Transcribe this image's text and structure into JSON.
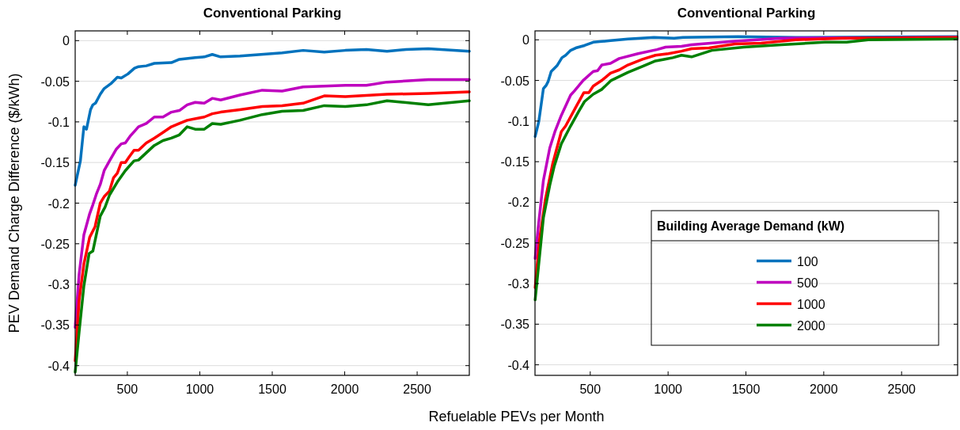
{
  "chart_data": [
    {
      "type": "line",
      "title": "Conventional Parking",
      "xlabel": "Refuelable PEVs per Month",
      "ylabel": "PEV Demand Charge Difference ($/kWh)",
      "xlim": [
        140,
        2860
      ],
      "ylim": [
        -0.412,
        0.012
      ],
      "xticks": [
        500,
        1000,
        1500,
        2000,
        2500
      ],
      "yticks": [
        0,
        -0.05,
        -0.1,
        -0.15,
        -0.2,
        -0.25,
        -0.3,
        -0.35,
        -0.4
      ],
      "grid": "y",
      "legend": false,
      "line_style": "solid",
      "marker": "none",
      "series": [
        {
          "color": "#0072bd",
          "x": [
            140,
            176,
            200,
            218,
            246,
            262,
            280,
            313,
            340,
            386,
            431,
            458,
            504,
            549,
            577,
            631,
            686,
            804,
            859,
            968,
            1031,
            1086,
            1144,
            1277,
            1568,
            1713,
            1859,
            2004,
            2150,
            2292,
            2423,
            2577,
            2860
          ],
          "values": [
            -0.178,
            -0.148,
            -0.106,
            -0.109,
            -0.085,
            -0.079,
            -0.077,
            -0.066,
            -0.059,
            -0.053,
            -0.045,
            -0.046,
            -0.041,
            -0.034,
            -0.032,
            -0.031,
            -0.028,
            -0.027,
            -0.023,
            -0.021,
            -0.02,
            -0.017,
            -0.02,
            -0.019,
            -0.015,
            -0.012,
            -0.014,
            -0.012,
            -0.011,
            -0.013,
            -0.011,
            -0.01,
            -0.013
          ]
        },
        {
          "color": "#bf00bf",
          "x": [
            140,
            167,
            200,
            240,
            262,
            286,
            313,
            340,
            377,
            422,
            458,
            486,
            522,
            577,
            631,
            686,
            746,
            804,
            859,
            913,
            968,
            1031,
            1086,
            1144,
            1277,
            1431,
            1568,
            1713,
            1859,
            2004,
            2150,
            2292,
            2577,
            2860
          ],
          "values": [
            -0.353,
            -0.288,
            -0.239,
            -0.213,
            -0.202,
            -0.189,
            -0.177,
            -0.16,
            -0.148,
            -0.134,
            -0.127,
            -0.126,
            -0.117,
            -0.106,
            -0.102,
            -0.094,
            -0.094,
            -0.088,
            -0.086,
            -0.079,
            -0.076,
            -0.077,
            -0.071,
            -0.073,
            -0.067,
            -0.061,
            -0.062,
            -0.057,
            -0.056,
            -0.055,
            -0.055,
            -0.051,
            -0.048,
            -0.048
          ]
        },
        {
          "color": "#ff0000",
          "x": [
            140,
            167,
            200,
            240,
            277,
            313,
            340,
            377,
            404,
            431,
            458,
            486,
            513,
            546,
            577,
            631,
            686,
            746,
            804,
            859,
            913,
            1031,
            1086,
            1144,
            1277,
            1431,
            1568,
            1713,
            1859,
            2004,
            2292,
            2577,
            2860
          ],
          "values": [
            -0.394,
            -0.32,
            -0.275,
            -0.242,
            -0.229,
            -0.2,
            -0.192,
            -0.185,
            -0.169,
            -0.163,
            -0.15,
            -0.15,
            -0.143,
            -0.135,
            -0.135,
            -0.126,
            -0.12,
            -0.113,
            -0.106,
            -0.102,
            -0.098,
            -0.094,
            -0.09,
            -0.088,
            -0.085,
            -0.081,
            -0.08,
            -0.077,
            -0.068,
            -0.069,
            -0.066,
            -0.065,
            -0.063
          ]
        },
        {
          "color": "#008000",
          "x": [
            140,
            167,
            200,
            236,
            262,
            313,
            346,
            377,
            431,
            486,
            546,
            577,
            631,
            686,
            746,
            804,
            859,
            913,
            968,
            1031,
            1086,
            1144,
            1277,
            1431,
            1568,
            1713,
            1859,
            2004,
            2150,
            2292,
            2577,
            2860
          ],
          "values": [
            -0.408,
            -0.359,
            -0.302,
            -0.262,
            -0.259,
            -0.216,
            -0.205,
            -0.19,
            -0.174,
            -0.16,
            -0.148,
            -0.147,
            -0.138,
            -0.129,
            -0.123,
            -0.12,
            -0.116,
            -0.106,
            -0.109,
            -0.109,
            -0.102,
            -0.103,
            -0.098,
            -0.091,
            -0.087,
            -0.086,
            -0.08,
            -0.081,
            -0.079,
            -0.074,
            -0.079,
            -0.074
          ]
        }
      ]
    },
    {
      "type": "line",
      "title": "Conventional Parking",
      "legend_title": "Building Average Demand (kW)",
      "xlim": [
        145,
        2860
      ],
      "ylim": [
        -0.413,
        0.011
      ],
      "xticks": [
        500,
        1000,
        1500,
        2000,
        2500
      ],
      "yticks": [
        0,
        -0.05,
        -0.1,
        -0.15,
        -0.2,
        -0.25,
        -0.3,
        -0.35,
        -0.4
      ],
      "grid": "y",
      "legend": "bottom right",
      "line_style": "solid",
      "marker": "none",
      "series": [
        {
          "name": "100",
          "color": "#0072bd",
          "x": [
            146,
            169,
            199,
            217,
            230,
            249,
            286,
            318,
            342,
            374,
            407,
            463,
            519,
            574,
            630,
            742,
            909,
            1039,
            1095,
            1449,
            1821,
            2857
          ],
          "values": [
            -0.119,
            -0.101,
            -0.06,
            -0.056,
            -0.051,
            -0.039,
            -0.032,
            -0.022,
            -0.019,
            -0.013,
            -0.01,
            -0.007,
            -0.003,
            -0.002,
            -0.001,
            0.001,
            0.003,
            0.002,
            0.003,
            0.004,
            0.003,
            0.004
          ]
        },
        {
          "name": "500",
          "color": "#bf00bf",
          "x": [
            146,
            165,
            199,
            240,
            273,
            314,
            374,
            398,
            454,
            519,
            547,
            574,
            630,
            686,
            807,
            928,
            984,
            1086,
            1151,
            1412,
            1728,
            2857
          ],
          "values": [
            -0.269,
            -0.232,
            -0.173,
            -0.133,
            -0.113,
            -0.093,
            -0.068,
            -0.063,
            -0.05,
            -0.039,
            -0.038,
            -0.031,
            -0.029,
            -0.023,
            -0.017,
            -0.012,
            -0.009,
            -0.008,
            -0.006,
            -0.002,
            0.002,
            0.003
          ]
        },
        {
          "name": "1000",
          "color": "#ff0000",
          "x": [
            146,
            174,
            212,
            258,
            314,
            342,
            407,
            459,
            491,
            519,
            574,
            630,
            686,
            742,
            835,
            919,
            1002,
            1086,
            1151,
            1263,
            1430,
            1598,
            1821,
            2119,
            2857
          ],
          "values": [
            -0.305,
            -0.246,
            -0.196,
            -0.153,
            -0.113,
            -0.106,
            -0.083,
            -0.065,
            -0.065,
            -0.057,
            -0.05,
            -0.041,
            -0.037,
            -0.031,
            -0.024,
            -0.019,
            -0.017,
            -0.014,
            -0.011,
            -0.01,
            -0.005,
            -0.004,
            0,
            0.002,
            0.003
          ]
        },
        {
          "name": "2000",
          "color": "#008000",
          "x": [
            146,
            199,
            240,
            268,
            314,
            374,
            426,
            463,
            519,
            574,
            634,
            742,
            844,
            919,
            974,
            1030,
            1086,
            1151,
            1281,
            1486,
            1728,
            2007,
            2147,
            2286,
            2857
          ],
          "values": [
            -0.32,
            -0.219,
            -0.179,
            -0.156,
            -0.128,
            -0.106,
            -0.088,
            -0.076,
            -0.067,
            -0.061,
            -0.05,
            -0.04,
            -0.032,
            -0.026,
            -0.024,
            -0.022,
            -0.019,
            -0.021,
            -0.013,
            -0.009,
            -0.006,
            -0.003,
            -0.003,
            0,
            0.001
          ]
        }
      ]
    }
  ]
}
